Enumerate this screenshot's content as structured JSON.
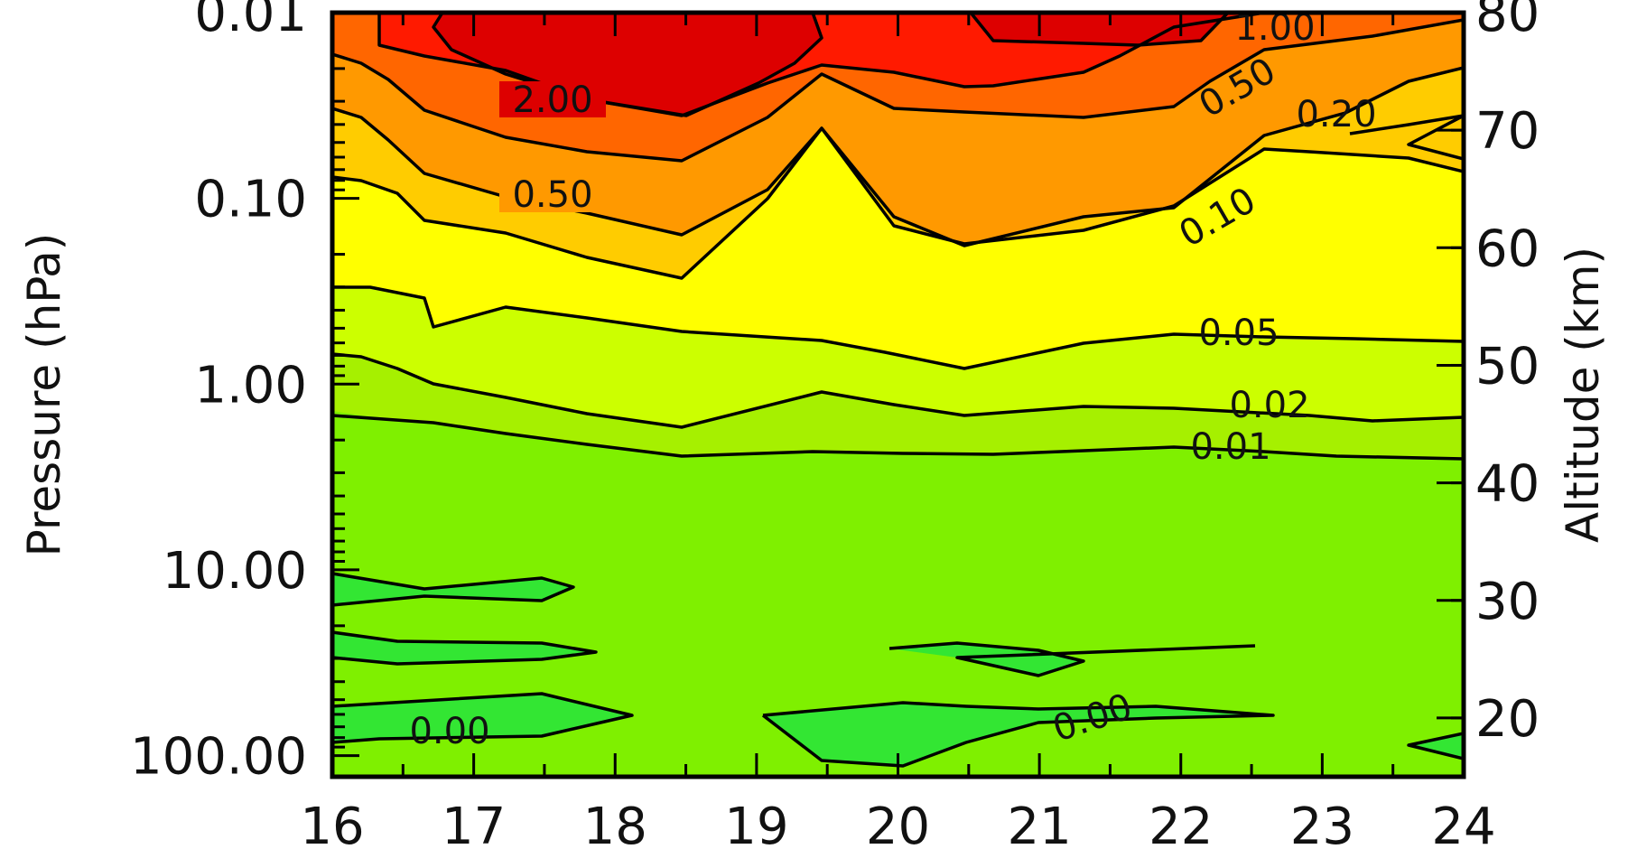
{
  "chart_data": {
    "type": "contour",
    "xlabel": "",
    "ylabel_left": "Pressure (hPa)",
    "ylabel_right": "Altitude (km)",
    "x_ticks": [
      "16",
      "17",
      "18",
      "19",
      "20",
      "21",
      "22",
      "23",
      "24"
    ],
    "xlim": [
      16,
      24
    ],
    "y_left_scale": "log",
    "y_left_ticks": [
      "0.01",
      "0.10",
      "1.00",
      "10.00",
      "100.00"
    ],
    "y_left_lim": [
      130,
      0.01
    ],
    "y_right_ticks": [
      "80",
      "70",
      "60",
      "50",
      "40",
      "30",
      "20"
    ],
    "y_right_lim": [
      15,
      80
    ],
    "grid": false,
    "contour_levels": [
      "0.00",
      "0.01",
      "0.02",
      "0.05",
      "0.10",
      "0.20",
      "0.50",
      "1.00",
      "2.00"
    ],
    "contour_labels": [
      "2.00",
      "0.50",
      "1.00",
      "0.50",
      "0.20",
      "0.10",
      "0.05",
      "0.02",
      "0.01",
      "0.00",
      "0.00"
    ],
    "fill_colors": {
      "below_zero": "#33e633",
      "0.00-0.01": "#7ff000",
      "0.01-0.02": "#a6f000",
      "0.02-0.05": "#ccff00",
      "0.05-0.10": "#ffff00",
      "0.10-0.20": "#ffcc00",
      "0.20-0.50": "#ff9900",
      "0.50-1.00": "#ff6600",
      "1.00-2.00": "#ff1a00",
      "above_2.00": "#dd0000"
    }
  }
}
